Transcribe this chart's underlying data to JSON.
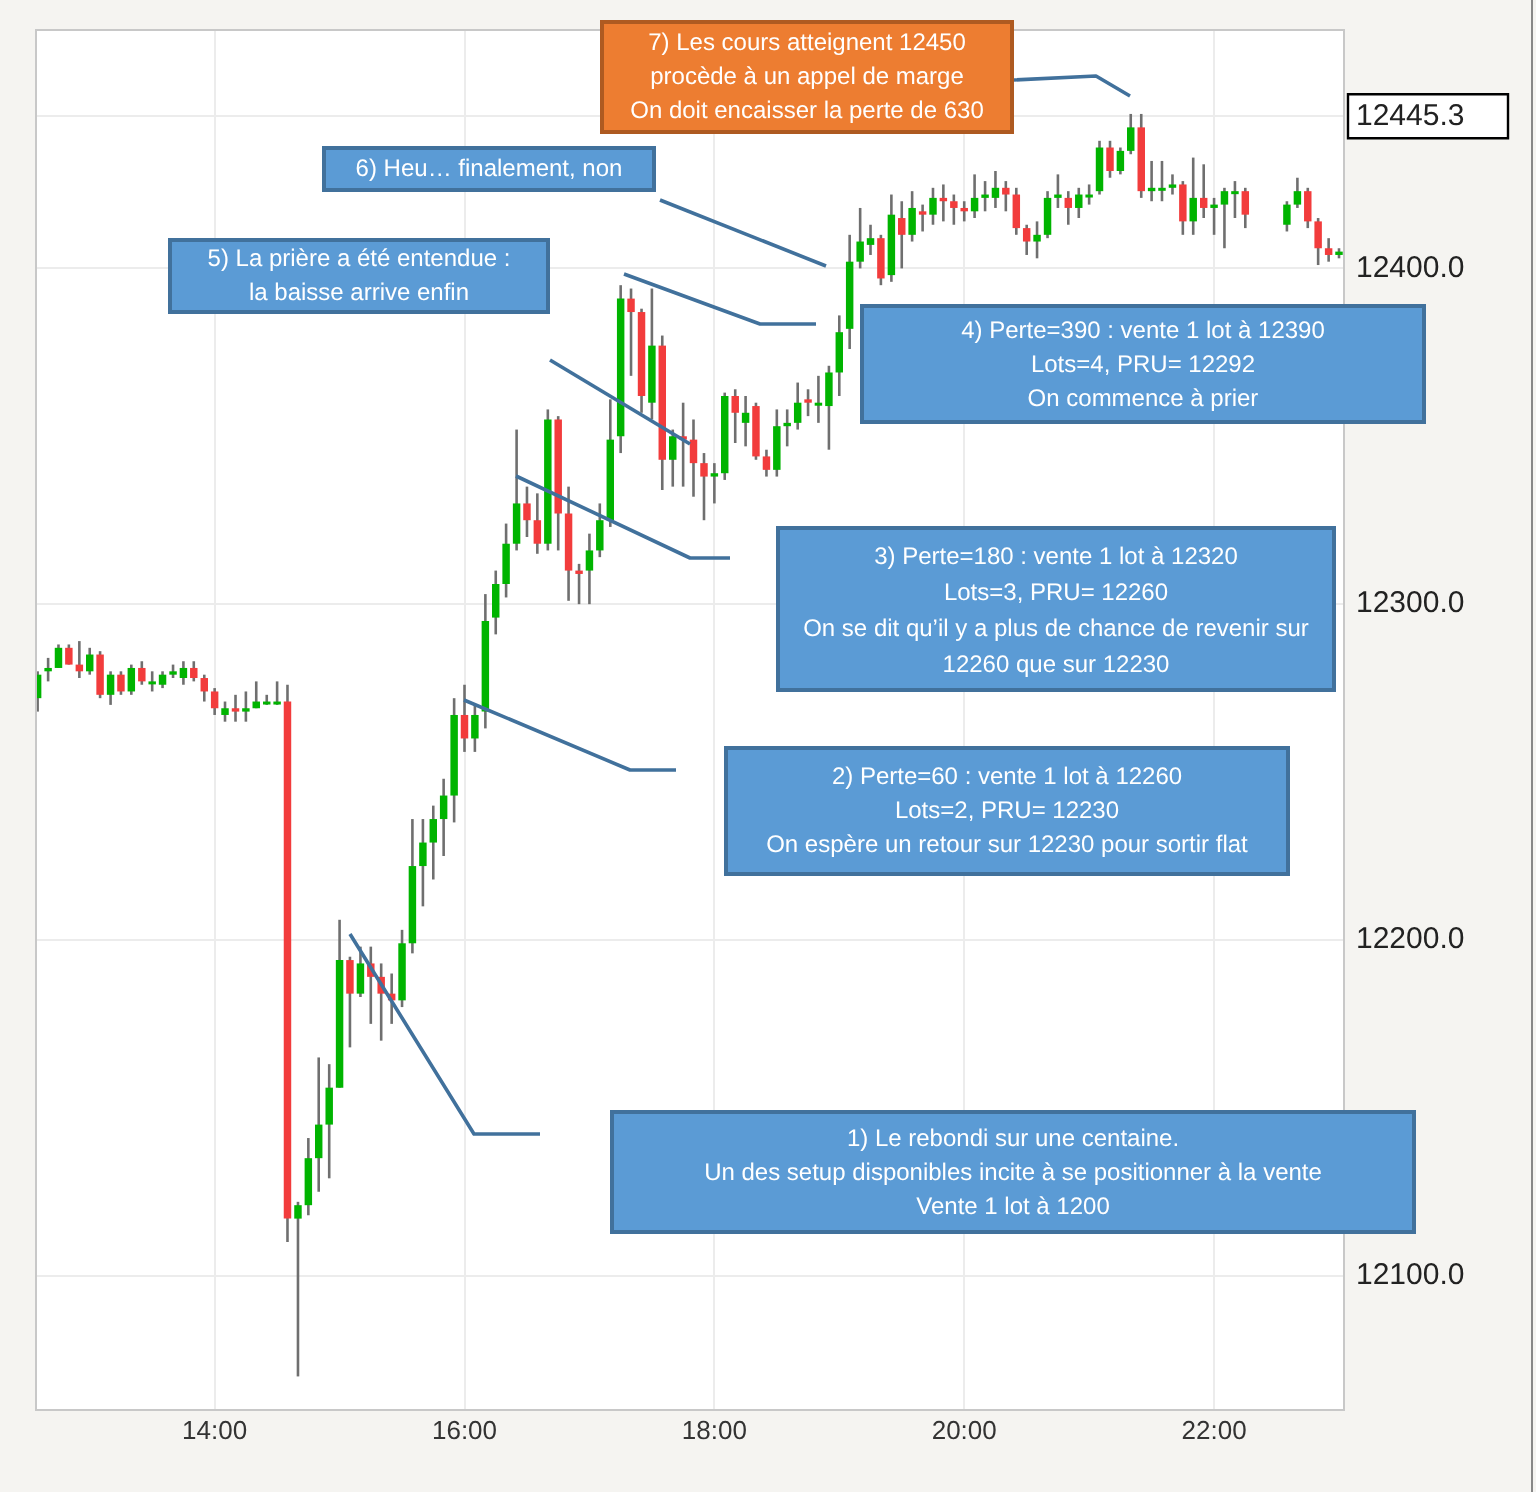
{
  "chart_data": {
    "type": "candlestick",
    "x": [
      12.583,
      12.667,
      12.75,
      12.833,
      12.917,
      13,
      13.083,
      13.167,
      13.25,
      13.333,
      13.417,
      13.5,
      13.583,
      13.667,
      13.75,
      13.833,
      13.917,
      14,
      14.083,
      14.167,
      14.25,
      14.333,
      14.417,
      14.5,
      14.583,
      14.667,
      14.75,
      14.833,
      14.917,
      15,
      15.083,
      15.167,
      15.25,
      15.333,
      15.417,
      15.5,
      15.583,
      15.667,
      15.75,
      15.833,
      15.917,
      16,
      16.083,
      16.167,
      16.25,
      16.333,
      16.417,
      16.5,
      16.583,
      16.667,
      16.75,
      16.833,
      16.917,
      17,
      17.083,
      17.167,
      17.25,
      17.333,
      17.417,
      17.5,
      17.583,
      17.667,
      17.75,
      17.833,
      17.917,
      18,
      18.083,
      18.167,
      18.25,
      18.333,
      18.417,
      18.5,
      18.583,
      18.667,
      18.75,
      18.833,
      18.917,
      19,
      19.083,
      19.167,
      19.25,
      19.333,
      19.417,
      19.5,
      19.583,
      19.667,
      19.75,
      19.833,
      19.917,
      20,
      20.083,
      20.167,
      20.25,
      20.333,
      20.417,
      20.5,
      20.583,
      20.667,
      20.75,
      20.833,
      20.917,
      21,
      21.083,
      21.167,
      21.25,
      21.333,
      21.417,
      21.5,
      21.583,
      21.667,
      21.75,
      21.833,
      21.917,
      22,
      22.083,
      22.167,
      22.25,
      22.583,
      22.667,
      22.75,
      22.833,
      22.917,
      23
    ],
    "ohlc": [
      [
        12272,
        12280,
        12268,
        12279
      ],
      [
        12280,
        12284,
        12277,
        12281
      ],
      [
        12281,
        12288,
        12281,
        12287
      ],
      [
        12287,
        12288,
        12282,
        12282
      ],
      [
        12282,
        12289,
        12278,
        12280
      ],
      [
        12280,
        12287,
        12279,
        12285
      ],
      [
        12285,
        12286,
        12272,
        12273
      ],
      [
        12273,
        12280,
        12270,
        12279
      ],
      [
        12279,
        12280,
        12273,
        12274
      ],
      [
        12274,
        12282,
        12273,
        12281
      ],
      [
        12281,
        12283,
        12276,
        12277
      ],
      [
        12277,
        12280,
        12274,
        12277
      ],
      [
        12276,
        12280,
        12275,
        12279
      ],
      [
        12279,
        12282,
        12278,
        12280
      ],
      [
        12278,
        12283,
        12276,
        12281
      ],
      [
        12281,
        12283,
        12277,
        12278
      ],
      [
        12278,
        12279,
        12271,
        12274
      ],
      [
        12274,
        12275,
        12267,
        12269
      ],
      [
        12267,
        12271,
        12265,
        12269
      ],
      [
        12269,
        12273,
        12265,
        12268
      ],
      [
        12268,
        12274,
        12265,
        12269
      ],
      [
        12269,
        12277,
        12269,
        12271
      ],
      [
        12271,
        12273,
        12270,
        12271
      ],
      [
        12271,
        12277,
        12270,
        12271
      ],
      [
        12271,
        12276,
        12110,
        12117
      ],
      [
        12117,
        12122,
        12070,
        12121
      ],
      [
        12121,
        12141,
        12118,
        12135
      ],
      [
        12135,
        12165,
        12125,
        12145
      ],
      [
        12145,
        12163,
        12129,
        12156
      ],
      [
        12156,
        12206,
        12156,
        12194
      ],
      [
        12194,
        12195,
        12168,
        12184
      ],
      [
        12184,
        12198,
        12183,
        12193
      ],
      [
        12193,
        12198,
        12175,
        12189
      ],
      [
        12189,
        12193,
        12170,
        12184
      ],
      [
        12184,
        12190,
        12175,
        12182
      ],
      [
        12182,
        12203,
        12180,
        12199
      ],
      [
        12199,
        12236,
        12196,
        12222
      ],
      [
        12222,
        12236,
        12210,
        12229
      ],
      [
        12229,
        12240,
        12218,
        12236
      ],
      [
        12236,
        12248,
        12225,
        12243
      ],
      [
        12243,
        12272,
        12235,
        12267
      ],
      [
        12267,
        12276,
        12256,
        12260
      ],
      [
        12260,
        12270,
        12256,
        12267
      ],
      [
        12268,
        12303,
        12263,
        12295
      ],
      [
        12296,
        12310,
        12291,
        12306
      ],
      [
        12306,
        12324,
        12302,
        12318
      ],
      [
        12318,
        12352,
        12316,
        12330
      ],
      [
        12330,
        12335,
        12320,
        12325
      ],
      [
        12325,
        12333,
        12315,
        12318
      ],
      [
        12318,
        12358,
        12316,
        12355
      ],
      [
        12355,
        12356,
        12316,
        12327
      ],
      [
        12327,
        12335,
        12301,
        12310
      ],
      [
        12310,
        12312,
        12300,
        12309
      ],
      [
        12310,
        12321,
        12300,
        12316
      ],
      [
        12316,
        12330,
        12314,
        12325
      ],
      [
        12325,
        12361,
        12323,
        12349
      ],
      [
        12350,
        12395,
        12345,
        12391
      ],
      [
        12391,
        12394,
        12368,
        12387
      ],
      [
        12387,
        12388,
        12357,
        12362
      ],
      [
        12360,
        12394,
        12355,
        12377
      ],
      [
        12377,
        12380,
        12334,
        12343
      ],
      [
        12343,
        12352,
        12335,
        12350
      ],
      [
        12350,
        12360,
        12335,
        12349
      ],
      [
        12349,
        12355,
        12332,
        12342
      ],
      [
        12342,
        12345,
        12325,
        12338
      ],
      [
        12338,
        12342,
        12330,
        12339
      ],
      [
        12339,
        12363,
        12337,
        12362
      ],
      [
        12362,
        12364,
        12348,
        12357
      ],
      [
        12354,
        12362,
        12347,
        12357
      ],
      [
        12359,
        12360,
        12343,
        12344
      ],
      [
        12344,
        12346,
        12338,
        12340
      ],
      [
        12340,
        12358,
        12338,
        12353
      ],
      [
        12353,
        12358,
        12347,
        12354
      ],
      [
        12354,
        12366,
        12352,
        12360
      ],
      [
        12361,
        12364,
        12356,
        12360
      ],
      [
        12360,
        12368,
        12354,
        12360
      ],
      [
        12359,
        12371,
        12346,
        12369
      ],
      [
        12369,
        12386,
        12362,
        12381
      ],
      [
        12382,
        12410,
        12376,
        12402
      ],
      [
        12402,
        12418,
        12400,
        12408
      ],
      [
        12407,
        12413,
        12404,
        12409
      ],
      [
        12409,
        12410,
        12395,
        12397
      ],
      [
        12398,
        12422,
        12396,
        12416
      ],
      [
        12415,
        12420,
        12400,
        12410
      ],
      [
        12410,
        12423,
        12408,
        12418
      ],
      [
        12417,
        12419,
        12411,
        12416
      ],
      [
        12416,
        12424,
        12413,
        12421
      ],
      [
        12421,
        12425,
        12414,
        12420
      ],
      [
        12420,
        12422,
        12413,
        12418
      ],
      [
        12418,
        12420,
        12414,
        12417
      ],
      [
        12417,
        12428,
        12415,
        12421
      ],
      [
        12421,
        12426,
        12417,
        12422
      ],
      [
        12421,
        12429,
        12418,
        12424
      ],
      [
        12424,
        12426,
        12417,
        12422
      ],
      [
        12422,
        12424,
        12410,
        12412
      ],
      [
        12412,
        12413,
        12404,
        12408
      ],
      [
        12408,
        12414,
        12403,
        12410
      ],
      [
        12410,
        12423,
        12409,
        12421
      ],
      [
        12421,
        12428,
        12418,
        12422
      ],
      [
        12421,
        12423,
        12413,
        12418
      ],
      [
        12418,
        12424,
        12415,
        12422
      ],
      [
        12422,
        12425,
        12419,
        12422
      ],
      [
        12423,
        12438,
        12422,
        12436
      ],
      [
        12436,
        12438,
        12427,
        12429
      ],
      [
        12429,
        12436,
        12428,
        12435
      ],
      [
        12435,
        12446,
        12434,
        12442
      ],
      [
        12442,
        12446,
        12421,
        12423
      ],
      [
        12423,
        12432,
        12420,
        12424
      ],
      [
        12424,
        12432,
        12420,
        12424
      ],
      [
        12424,
        12428,
        12422,
        12425
      ],
      [
        12425,
        12426,
        12410,
        12414
      ],
      [
        12414,
        12433,
        12410,
        12421
      ],
      [
        12421,
        12431,
        12415,
        12418
      ],
      [
        12418,
        12421,
        12410,
        12419
      ],
      [
        12419,
        12424,
        12406,
        12423
      ],
      [
        12423,
        12426,
        12415,
        12423
      ],
      [
        12423,
        12424,
        12412,
        12416
      ],
      [
        12413,
        12420,
        12411,
        12419
      ],
      [
        12419,
        12427,
        12418,
        12423
      ],
      [
        12423,
        12424,
        12412,
        12414
      ],
      [
        12414,
        12415,
        12401,
        12406
      ],
      [
        12406,
        12409,
        12402,
        12404
      ],
      [
        12404,
        12406,
        12403,
        12405
      ]
    ],
    "xlim": [
      12.57,
      23.04
    ],
    "xticks": [
      {
        "value": 14,
        "label": "14:00"
      },
      {
        "value": 16,
        "label": "16:00"
      },
      {
        "value": 18,
        "label": "18:00"
      },
      {
        "value": 20,
        "label": "20:00"
      },
      {
        "value": 22,
        "label": "22:00"
      }
    ],
    "ylim": [
      12060,
      12471
    ],
    "yticks": [
      {
        "value": 12100,
        "label": "12100.0"
      },
      {
        "value": 12200,
        "label": "12200.0"
      },
      {
        "value": 12300,
        "label": "12300.0"
      },
      {
        "value": 12400,
        "label": "12400.0"
      },
      {
        "value": 12445.3,
        "label": "12445.3"
      }
    ],
    "grid": true,
    "annotations": [
      "1) Le rebondi sur une centaine.\nUn des setup disponibles incite à se positionner à la vente\nVente 1 lot à 1200",
      "2) Perte=60 : vente 1 lot à 12260\nLots=2, PRU= 12230\nOn espère un retour sur 12230 pour sortir flat",
      "3) Perte=180 : vente 1 lot à 12320\nLots=3, PRU= 12260\nOn se dit qu’il y a plus de chance de revenir sur\n12260 que sur 12230",
      "4) Perte=390 : vente 1 lot à 12390\nLots=4, PRU= 12292\nOn commence à prier",
      "5) La prière a été entendue :\nla baisse arrive enfin",
      "6) Heu… finalement, non",
      "7) Les cours atteignent 12450\nprocède à un appel de marge\nOn doit encaisser la perte de 630"
    ]
  }
}
